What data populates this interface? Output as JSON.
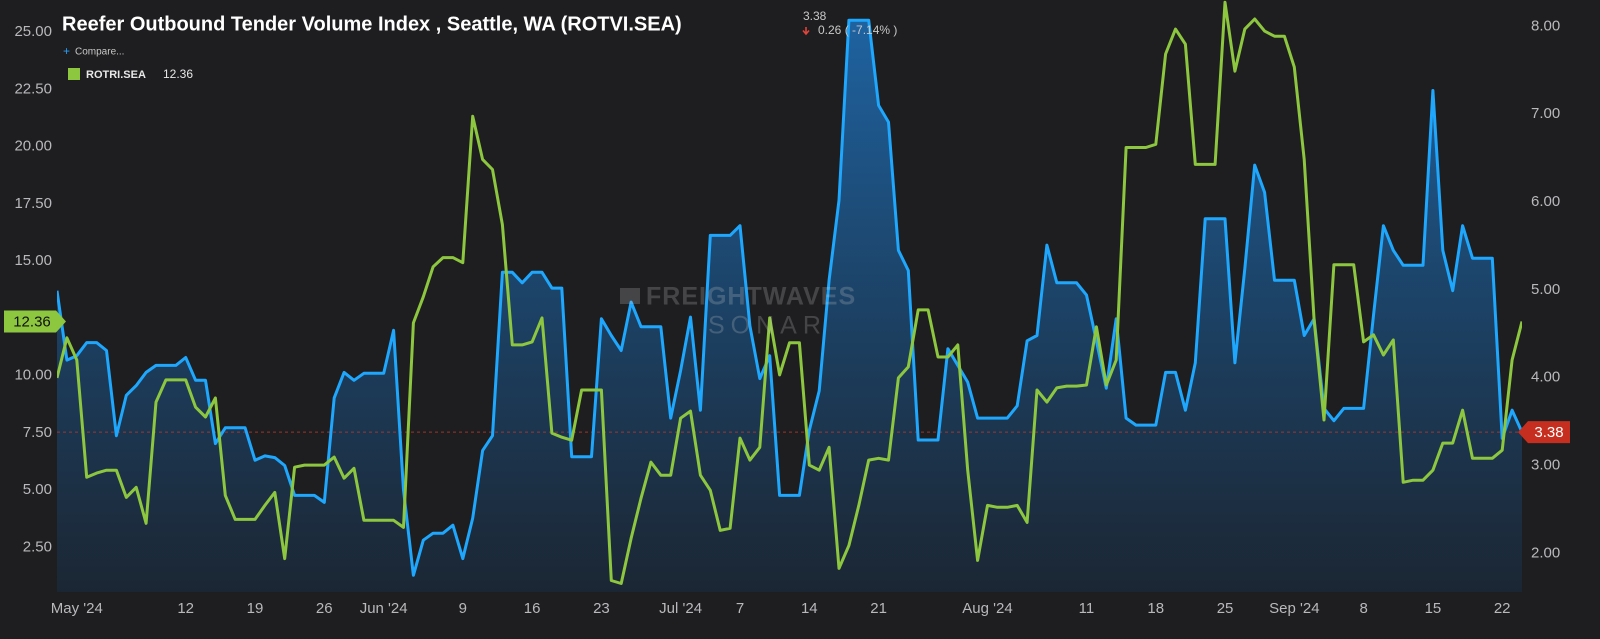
{
  "header": {
    "title": "Reefer Outbound Tender Volume Index , Seattle, WA (ROTVI.SEA)",
    "change": "0.26 ( -7.14% )",
    "compare": "Compare..."
  },
  "watermark": {
    "brand": "FREIGHTWAVES",
    "product": "SONAR"
  },
  "chart_data": {
    "type": "line",
    "x": [
      "2024-04-29",
      "2024-04-30",
      "2024-05-01",
      "2024-05-02",
      "2024-05-03",
      "2024-05-04",
      "2024-05-05",
      "2024-05-06",
      "2024-05-07",
      "2024-05-08",
      "2024-05-09",
      "2024-05-10",
      "2024-05-11",
      "2024-05-12",
      "2024-05-13",
      "2024-05-14",
      "2024-05-15",
      "2024-05-16",
      "2024-05-17",
      "2024-05-18",
      "2024-05-19",
      "2024-05-20",
      "2024-05-21",
      "2024-05-22",
      "2024-05-23",
      "2024-05-24",
      "2024-05-25",
      "2024-05-26",
      "2024-05-27",
      "2024-05-28",
      "2024-05-29",
      "2024-05-30",
      "2024-05-31",
      "2024-06-01",
      "2024-06-02",
      "2024-06-03",
      "2024-06-04",
      "2024-06-05",
      "2024-06-06",
      "2024-06-07",
      "2024-06-08",
      "2024-06-09",
      "2024-06-10",
      "2024-06-11",
      "2024-06-12",
      "2024-06-13",
      "2024-06-14",
      "2024-06-15",
      "2024-06-16",
      "2024-06-17",
      "2024-06-18",
      "2024-06-19",
      "2024-06-20",
      "2024-06-21",
      "2024-06-22",
      "2024-06-23",
      "2024-06-24",
      "2024-06-25",
      "2024-06-26",
      "2024-06-27",
      "2024-06-28",
      "2024-06-29",
      "2024-06-30",
      "2024-07-01",
      "2024-07-02",
      "2024-07-03",
      "2024-07-04",
      "2024-07-05",
      "2024-07-06",
      "2024-07-07",
      "2024-07-08",
      "2024-07-09",
      "2024-07-10",
      "2024-07-11",
      "2024-07-12",
      "2024-07-13",
      "2024-07-14",
      "2024-07-15",
      "2024-07-16",
      "2024-07-17",
      "2024-07-18",
      "2024-07-19",
      "2024-07-20",
      "2024-07-21",
      "2024-07-22",
      "2024-07-23",
      "2024-07-24",
      "2024-07-25",
      "2024-07-26",
      "2024-07-27",
      "2024-07-28",
      "2024-07-29",
      "2024-07-30",
      "2024-07-31",
      "2024-08-01",
      "2024-08-02",
      "2024-08-03",
      "2024-08-04",
      "2024-08-05",
      "2024-08-06",
      "2024-08-07",
      "2024-08-08",
      "2024-08-09",
      "2024-08-10",
      "2024-08-11",
      "2024-08-12",
      "2024-08-13",
      "2024-08-14",
      "2024-08-15",
      "2024-08-16",
      "2024-08-17",
      "2024-08-18",
      "2024-08-19",
      "2024-08-20",
      "2024-08-21",
      "2024-08-22",
      "2024-08-23",
      "2024-08-24",
      "2024-08-25",
      "2024-08-26",
      "2024-08-27",
      "2024-08-28",
      "2024-08-29",
      "2024-08-30",
      "2024-08-31",
      "2024-09-01",
      "2024-09-02",
      "2024-09-03",
      "2024-09-04",
      "2024-09-05",
      "2024-09-06",
      "2024-09-07",
      "2024-09-08",
      "2024-09-09",
      "2024-09-10",
      "2024-09-11",
      "2024-09-12",
      "2024-09-13",
      "2024-09-14",
      "2024-09-15",
      "2024-09-16",
      "2024-09-17",
      "2024-09-18",
      "2024-09-19",
      "2024-09-20",
      "2024-09-21",
      "2024-09-22",
      "2024-09-23",
      "2024-09-24"
    ],
    "series": [
      {
        "color": "#1ea7fd",
        "axis": "y2",
        "values": [
          4.99,
          4.2,
          4.25,
          4.4,
          4.4,
          4.31,
          3.34,
          3.8,
          3.91,
          4.06,
          4.14,
          4.14,
          4.14,
          4.23,
          3.97,
          3.97,
          3.25,
          3.43,
          3.43,
          3.43,
          3.06,
          3.11,
          3.09,
          3.0,
          2.66,
          2.66,
          2.66,
          2.58,
          3.77,
          4.06,
          3.97,
          4.05,
          4.05,
          4.05,
          4.54,
          2.72,
          1.75,
          2.15,
          2.23,
          2.23,
          2.32,
          1.94,
          2.4,
          3.17,
          3.34,
          5.2,
          5.2,
          5.08,
          5.2,
          5.2,
          5.02,
          5.02,
          3.1,
          3.1,
          3.1,
          4.67,
          4.48,
          4.31,
          4.86,
          4.58,
          4.58,
          4.58,
          3.54,
          4.08,
          4.69,
          3.63,
          5.62,
          5.62,
          5.62,
          5.73,
          4.59,
          3.99,
          4.25,
          2.66,
          2.66,
          2.66,
          3.4,
          3.85,
          5.11,
          6.02,
          8.07,
          8.07,
          8.07,
          7.1,
          6.91,
          5.45,
          5.22,
          3.29,
          3.29,
          3.29,
          4.33,
          4.14,
          3.95,
          3.54,
          3.54,
          3.54,
          3.54,
          3.68,
          4.42,
          4.48,
          5.51,
          5.08,
          5.08,
          5.08,
          4.94,
          4.42,
          3.88,
          4.67,
          3.54,
          3.46,
          3.46,
          3.46,
          4.06,
          4.06,
          3.63,
          4.17,
          5.81,
          5.81,
          5.81,
          4.17,
          5.24,
          6.42,
          6.11,
          5.11,
          5.11,
          5.11,
          4.48,
          4.67,
          3.65,
          3.51,
          3.65,
          3.65,
          3.65,
          4.71,
          5.73,
          5.45,
          5.28,
          5.28,
          5.28,
          7.27,
          5.45,
          4.99,
          5.73,
          5.36,
          5.36,
          5.36,
          3.31,
          3.63,
          3.38
        ]
      },
      {
        "name": "ROTRI.SEA",
        "color": "#8dc63f",
        "axis": "y",
        "values": [
          9.9,
          11.65,
          10.68,
          5.56,
          5.74,
          5.87,
          5.87,
          4.68,
          5.12,
          3.55,
          8.84,
          9.81,
          9.81,
          9.81,
          8.62,
          8.19,
          9.02,
          4.77,
          3.72,
          3.72,
          3.72,
          4.33,
          4.9,
          2.01,
          6.0,
          6.09,
          6.09,
          6.09,
          6.44,
          5.52,
          5.95,
          3.68,
          3.68,
          3.68,
          3.68,
          3.37,
          12.3,
          13.44,
          14.75,
          15.15,
          15.15,
          14.93,
          21.32,
          19.44,
          19.0,
          16.59,
          11.34,
          11.34,
          11.47,
          12.52,
          7.49,
          7.31,
          7.18,
          9.37,
          9.37,
          9.37,
          1.05,
          0.92,
          2.89,
          4.64,
          6.22,
          5.65,
          5.65,
          8.14,
          8.45,
          5.65,
          4.99,
          3.24,
          3.33,
          7.27,
          6.31,
          6.87,
          12.52,
          10.03,
          11.43,
          11.43,
          6.09,
          5.87,
          6.87,
          1.58,
          2.58,
          4.33,
          6.31,
          6.39,
          6.31,
          9.9,
          10.38,
          12.87,
          12.87,
          10.81,
          10.81,
          11.34,
          5.87,
          1.93,
          4.33,
          4.25,
          4.25,
          4.33,
          3.59,
          9.37,
          8.84,
          9.46,
          9.54,
          9.54,
          9.59,
          12.13,
          9.59,
          10.68,
          19.96,
          19.96,
          19.96,
          20.1,
          24.04,
          25.13,
          24.47,
          19.22,
          19.22,
          19.22,
          26.3,
          23.29,
          25.13,
          25.57,
          25.04,
          24.82,
          24.82,
          23.47,
          19.44,
          12.43,
          8.06,
          14.84,
          14.84,
          14.84,
          11.47,
          11.78,
          10.9,
          11.56,
          5.34,
          5.43,
          5.43,
          5.87,
          7.05,
          7.05,
          8.49,
          6.39,
          6.39,
          6.39,
          6.74,
          10.68,
          12.36
        ]
      }
    ],
    "xlim": [
      "2024-04-29",
      "2024-09-24"
    ],
    "xticks": [
      {
        "value": "2024-05-01",
        "label": "May '24"
      },
      {
        "value": "2024-05-12",
        "label": "12"
      },
      {
        "value": "2024-05-19",
        "label": "19"
      },
      {
        "value": "2024-05-26",
        "label": "26"
      },
      {
        "value": "2024-06-01",
        "label": "Jun '24"
      },
      {
        "value": "2024-06-09",
        "label": "9"
      },
      {
        "value": "2024-06-16",
        "label": "16"
      },
      {
        "value": "2024-06-23",
        "label": "23"
      },
      {
        "value": "2024-07-01",
        "label": "Jul '24"
      },
      {
        "value": "2024-07-07",
        "label": "7"
      },
      {
        "value": "2024-07-14",
        "label": "14"
      },
      {
        "value": "2024-07-21",
        "label": "21"
      },
      {
        "value": "2024-08-01",
        "label": "Aug '24"
      },
      {
        "value": "2024-08-11",
        "label": "11"
      },
      {
        "value": "2024-08-18",
        "label": "18"
      },
      {
        "value": "2024-08-25",
        "label": "25"
      },
      {
        "value": "2024-09-01",
        "label": "Sep '24"
      },
      {
        "value": "2024-09-08",
        "label": "8"
      },
      {
        "value": "2024-09-15",
        "label": "15"
      },
      {
        "value": "2024-09-22",
        "label": "22"
      }
    ],
    "ylim": [
      0.55,
      26.4
    ],
    "yticks": [
      {
        "value": 2.5,
        "label": "2.50"
      },
      {
        "value": 5,
        "label": "5.00"
      },
      {
        "value": 7.5,
        "label": "7.50"
      },
      {
        "value": 10,
        "label": "10.00"
      },
      {
        "value": 12.5,
        "label": "12.50"
      },
      {
        "value": 15,
        "label": "15.00"
      },
      {
        "value": 17.5,
        "label": "17.50"
      },
      {
        "value": 20,
        "label": "20.00"
      },
      {
        "value": 22.5,
        "label": "22.50"
      },
      {
        "value": 25,
        "label": "25.00"
      }
    ],
    "y2lim": [
      1.56,
      8.3
    ],
    "y2ticks": [
      {
        "value": 2,
        "label": "2.00"
      },
      {
        "value": 3,
        "label": "3.00"
      },
      {
        "value": 4,
        "label": "4.00"
      },
      {
        "value": 5,
        "label": "5.00"
      },
      {
        "value": 6,
        "label": "6.00"
      },
      {
        "value": 7,
        "label": "7.00"
      },
      {
        "value": 8,
        "label": "8.00"
      }
    ],
    "grid": false,
    "area_under": "y2"
  }
}
